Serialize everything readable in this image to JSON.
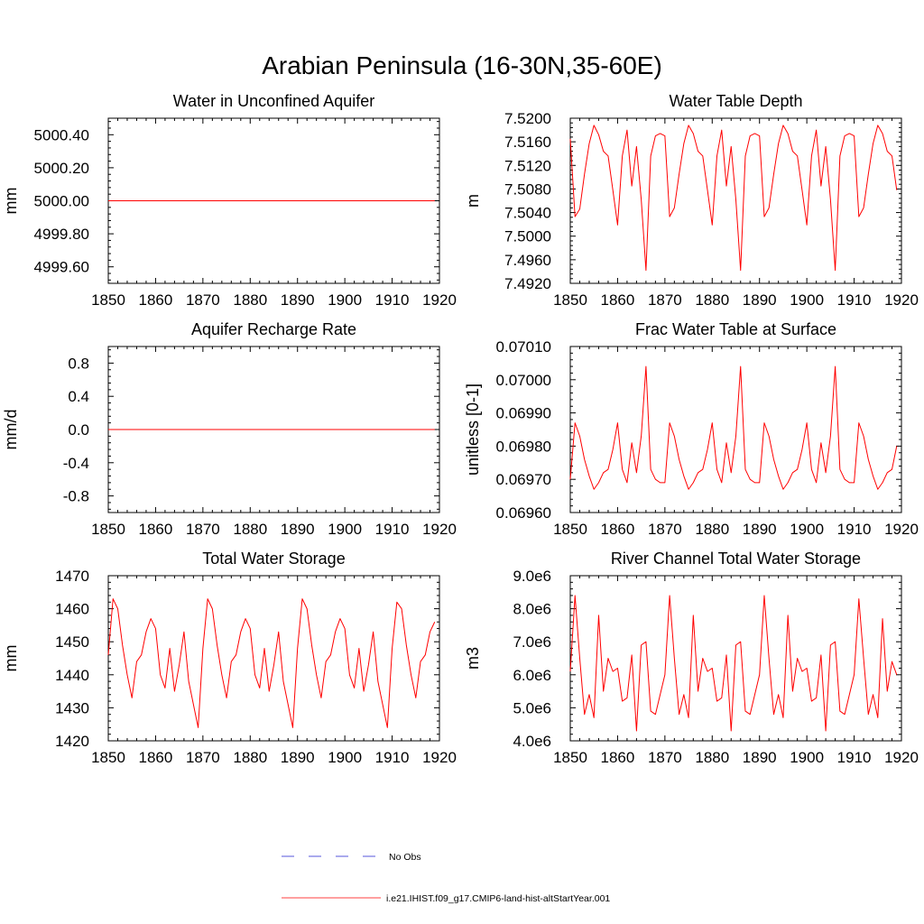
{
  "figure": {
    "title": "Arabian Peninsula (16-30N,35-60E)"
  },
  "legend": [
    {
      "label": "No Obs",
      "color": "#1f1fcf",
      "style": "dashed"
    },
    {
      "label": "i.e21.IHIST.f09_g17.CMIP6-land-hist-altStartYear.001",
      "color": "#ff0000",
      "style": "solid"
    }
  ],
  "chart_data": [
    {
      "type": "line",
      "title": "Water in Unconfined Aquifer",
      "ylabel": "mm",
      "xlim": [
        1850,
        1920
      ],
      "ylim": [
        4999.5,
        5000.5
      ],
      "xticks": [
        1850,
        1860,
        1870,
        1880,
        1890,
        1900,
        1910,
        1920
      ],
      "yticks": [
        4999.6,
        4999.8,
        5000.0,
        5000.2,
        5000.4
      ],
      "ytick_labels": [
        "4999.60",
        "4999.80",
        "5000.00",
        "5000.20",
        "5000.40"
      ],
      "series": [
        {
          "color": "#ff0000",
          "x": [
            1850,
            1919
          ],
          "y": [
            5000.0,
            5000.0
          ]
        }
      ]
    },
    {
      "type": "line",
      "title": "Water Table Depth",
      "ylabel": "m",
      "xlim": [
        1850,
        1920
      ],
      "ylim": [
        7.492,
        7.52
      ],
      "xticks": [
        1850,
        1860,
        1870,
        1880,
        1890,
        1900,
        1910,
        1920
      ],
      "yticks": [
        7.492,
        7.496,
        7.5,
        7.504,
        7.508,
        7.512,
        7.516,
        7.52
      ],
      "ytick_labels": [
        "7.4920",
        "7.4960",
        "7.5000",
        "7.5040",
        "7.5080",
        "7.5120",
        "7.5160",
        "7.5200"
      ],
      "series": [
        {
          "color": "#ff0000",
          "x_start": 1850,
          "y": [
            7.5165,
            7.5033,
            7.5046,
            7.5105,
            7.5157,
            7.5188,
            7.5172,
            7.5144,
            7.5136,
            7.5078,
            7.5019,
            7.5136,
            7.518,
            7.5085,
            7.5152,
            7.5062,
            7.4942,
            7.5136,
            7.517,
            7.5174,
            7.517,
            7.5033,
            7.5048,
            7.5105,
            7.5157,
            7.5188,
            7.5174,
            7.5144,
            7.5136,
            7.5078,
            7.5019,
            7.5136,
            7.518,
            7.5085,
            7.5152,
            7.5062,
            7.4942,
            7.5136,
            7.517,
            7.5174,
            7.517,
            7.5033,
            7.5048,
            7.5105,
            7.5157,
            7.5188,
            7.5174,
            7.5144,
            7.5136,
            7.5078,
            7.5019,
            7.5136,
            7.518,
            7.5085,
            7.5152,
            7.5062,
            7.4942,
            7.5136,
            7.517,
            7.5174,
            7.517,
            7.5033,
            7.5048,
            7.5105,
            7.5157,
            7.5188,
            7.5174,
            7.5144,
            7.5136,
            7.5078
          ]
        }
      ]
    },
    {
      "type": "line",
      "title": "Aquifer Recharge Rate",
      "ylabel": "mm/d",
      "xlim": [
        1850,
        1920
      ],
      "ylim": [
        -1.0,
        1.0
      ],
      "xticks": [
        1850,
        1860,
        1870,
        1880,
        1890,
        1900,
        1910,
        1920
      ],
      "yticks": [
        -0.8,
        -0.4,
        0.0,
        0.4,
        0.8
      ],
      "ytick_labels": [
        "-0.8",
        "-0.4",
        "0.0",
        "0.4",
        "0.8"
      ],
      "series": [
        {
          "color": "#ff0000",
          "x": [
            1850,
            1919
          ],
          "y": [
            0.0,
            0.0
          ]
        }
      ]
    },
    {
      "type": "line",
      "title": "Frac Water Table at Surface",
      "ylabel": "unitless [0-1]",
      "xlim": [
        1850,
        1920
      ],
      "ylim": [
        0.0696,
        0.0701
      ],
      "xticks": [
        1850,
        1860,
        1870,
        1880,
        1890,
        1900,
        1910,
        1920
      ],
      "yticks": [
        0.0696,
        0.0697,
        0.0698,
        0.0699,
        0.07,
        0.0701
      ],
      "ytick_labels": [
        "0.06960",
        "0.06970",
        "0.06980",
        "0.06990",
        "0.07000",
        "0.07010"
      ],
      "series": [
        {
          "color": "#ff0000",
          "x_start": 1850,
          "y": [
            0.0697,
            0.06987,
            0.06983,
            0.06976,
            0.06971,
            0.06967,
            0.06969,
            0.06972,
            0.06973,
            0.06979,
            0.06987,
            0.06973,
            0.06969,
            0.06981,
            0.06972,
            0.06983,
            0.07004,
            0.06973,
            0.0697,
            0.06969,
            0.06969,
            0.06987,
            0.06983,
            0.06976,
            0.06971,
            0.06967,
            0.06969,
            0.06972,
            0.06973,
            0.06979,
            0.06987,
            0.06973,
            0.06969,
            0.06981,
            0.06972,
            0.06983,
            0.07004,
            0.06973,
            0.0697,
            0.06969,
            0.06969,
            0.06987,
            0.06983,
            0.06976,
            0.06971,
            0.06967,
            0.06969,
            0.06972,
            0.06973,
            0.06979,
            0.06987,
            0.06973,
            0.06969,
            0.06981,
            0.06972,
            0.06983,
            0.07004,
            0.06973,
            0.0697,
            0.06969,
            0.06969,
            0.06987,
            0.06983,
            0.06976,
            0.06971,
            0.06967,
            0.06969,
            0.06972,
            0.06973,
            0.0698
          ]
        }
      ]
    },
    {
      "type": "line",
      "title": "Total Water Storage",
      "ylabel": "mm",
      "xlim": [
        1850,
        1920
      ],
      "ylim": [
        1420,
        1470
      ],
      "xticks": [
        1850,
        1860,
        1870,
        1880,
        1890,
        1900,
        1910,
        1920
      ],
      "yticks": [
        1420,
        1430,
        1440,
        1450,
        1460,
        1470
      ],
      "ytick_labels": [
        "1420",
        "1430",
        "1440",
        "1450",
        "1460",
        "1470"
      ],
      "series": [
        {
          "color": "#ff0000",
          "x_start": 1850,
          "y": [
            1446,
            1463,
            1460,
            1449,
            1440,
            1433,
            1444,
            1446,
            1453,
            1457,
            1454,
            1440,
            1436,
            1448,
            1435,
            1443,
            1453,
            1438,
            1431,
            1424,
            1448,
            1463,
            1460,
            1449,
            1440,
            1433,
            1444,
            1446,
            1453,
            1457,
            1454,
            1440,
            1436,
            1448,
            1435,
            1443,
            1453,
            1438,
            1431,
            1424,
            1448,
            1463,
            1460,
            1449,
            1440,
            1433,
            1444,
            1446,
            1453,
            1457,
            1454,
            1440,
            1436,
            1448,
            1435,
            1443,
            1453,
            1438,
            1431,
            1424,
            1448,
            1462,
            1460,
            1449,
            1440,
            1433,
            1444,
            1446,
            1453,
            1456
          ]
        }
      ]
    },
    {
      "type": "line",
      "title": "River Channel Total Water Storage",
      "ylabel": "m3",
      "xlim": [
        1850,
        1920
      ],
      "ylim": [
        4000000,
        9000000
      ],
      "xticks": [
        1850,
        1860,
        1870,
        1880,
        1890,
        1900,
        1910,
        1920
      ],
      "yticks": [
        4000000,
        5000000,
        6000000,
        7000000,
        8000000,
        9000000
      ],
      "ytick_labels": [
        "4.0e6",
        "5.0e6",
        "6.0e6",
        "7.0e6",
        "8.0e6",
        "9.0e6"
      ],
      "series": [
        {
          "color": "#ff0000",
          "x_start": 1850,
          "y": [
            6100000,
            8400000,
            6500000,
            4800000,
            5400000,
            4700000,
            7800000,
            5500000,
            6500000,
            6100000,
            6200000,
            5200000,
            5300000,
            6600000,
            4300000,
            6900000,
            7000000,
            4900000,
            4800000,
            5400000,
            6000000,
            8400000,
            6500000,
            4800000,
            5400000,
            4700000,
            7800000,
            5500000,
            6500000,
            6100000,
            6200000,
            5200000,
            5300000,
            6600000,
            4300000,
            6900000,
            7000000,
            4900000,
            4800000,
            5400000,
            6000000,
            8400000,
            6500000,
            4800000,
            5400000,
            4700000,
            7800000,
            5500000,
            6500000,
            6100000,
            6200000,
            5200000,
            5300000,
            6600000,
            4300000,
            6900000,
            7000000,
            4900000,
            4800000,
            5400000,
            6000000,
            8300000,
            6500000,
            4800000,
            5400000,
            4700000,
            7700000,
            5500000,
            6400000,
            6000000
          ]
        }
      ]
    }
  ]
}
